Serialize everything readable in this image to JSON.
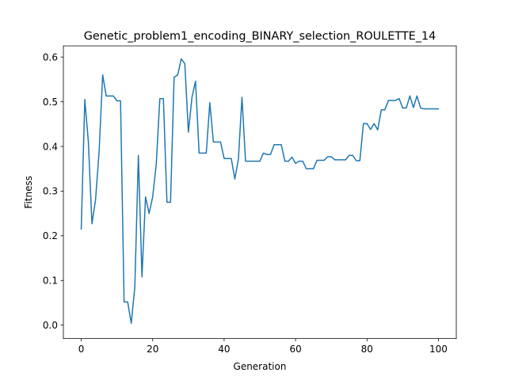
{
  "chart_data": {
    "type": "line",
    "title": "Genetic_problem1_encoding_BINARY_selection_ROULETTE_14",
    "xlabel": "Generation",
    "ylabel": "Fitness",
    "xlim": [
      -5,
      105
    ],
    "ylim": [
      -0.03,
      0.625
    ],
    "xticks": [
      0,
      20,
      40,
      60,
      80,
      100
    ],
    "yticks": [
      0.0,
      0.1,
      0.2,
      0.3,
      0.4,
      0.5,
      0.6
    ],
    "ytick_labels": [
      "0.0",
      "0.1",
      "0.2",
      "0.3",
      "0.4",
      "0.5",
      "0.6"
    ],
    "grid": false,
    "colors": {
      "line": "#1f77b4"
    },
    "series": [
      {
        "x": [
          0,
          1,
          2,
          3,
          4,
          5,
          6,
          7,
          8,
          9,
          10,
          11,
          12,
          13,
          14,
          15,
          16,
          17,
          18,
          19,
          20,
          21,
          22,
          23,
          24,
          25,
          26,
          27,
          28,
          29,
          30,
          31,
          32,
          33,
          34,
          35,
          36,
          37,
          38,
          39,
          40,
          41,
          42,
          43,
          44,
          45,
          46,
          47,
          48,
          49,
          50,
          51,
          52,
          53,
          54,
          55,
          56,
          57,
          58,
          59,
          60,
          61,
          62,
          63,
          64,
          65,
          66,
          67,
          68,
          69,
          70,
          71,
          72,
          73,
          74,
          75,
          76,
          77,
          78,
          79,
          80,
          81,
          82,
          83,
          84,
          85,
          86,
          87,
          88,
          89,
          90,
          91,
          92,
          93,
          94,
          95,
          96,
          97,
          98,
          99,
          100
        ],
        "values": [
          0.215,
          0.505,
          0.41,
          0.227,
          0.28,
          0.388,
          0.56,
          0.513,
          0.513,
          0.513,
          0.502,
          0.502,
          0.052,
          0.052,
          0.004,
          0.085,
          0.38,
          0.108,
          0.287,
          0.25,
          0.287,
          0.36,
          0.507,
          0.507,
          0.275,
          0.275,
          0.555,
          0.56,
          0.596,
          0.585,
          0.432,
          0.51,
          0.546,
          0.385,
          0.385,
          0.385,
          0.498,
          0.41,
          0.41,
          0.41,
          0.373,
          0.373,
          0.373,
          0.327,
          0.372,
          0.51,
          0.367,
          0.367,
          0.367,
          0.367,
          0.367,
          0.385,
          0.382,
          0.382,
          0.404,
          0.404,
          0.404,
          0.367,
          0.367,
          0.376,
          0.362,
          0.367,
          0.367,
          0.35,
          0.35,
          0.35,
          0.369,
          0.369,
          0.369,
          0.377,
          0.377,
          0.37,
          0.37,
          0.37,
          0.37,
          0.38,
          0.38,
          0.368,
          0.368,
          0.451,
          0.451,
          0.438,
          0.451,
          0.437,
          0.482,
          0.482,
          0.503,
          0.503,
          0.503,
          0.507,
          0.486,
          0.486,
          0.513,
          0.487,
          0.513,
          0.486,
          0.484,
          0.484,
          0.484,
          0.484,
          0.484
        ]
      }
    ]
  }
}
